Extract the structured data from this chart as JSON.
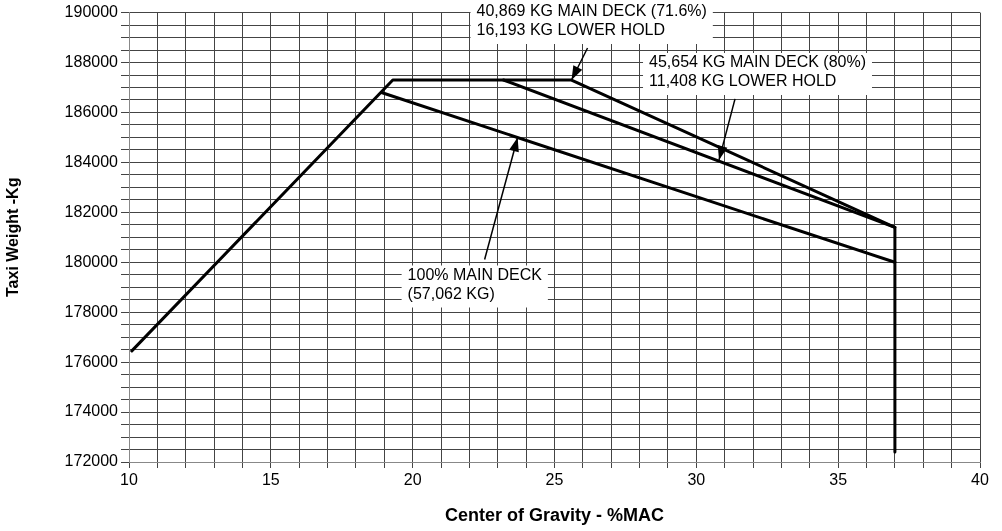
{
  "chart_data": {
    "type": "line",
    "xlabel": "Center of Gravity - %MAC",
    "ylabel": "Taxi Weight -Kg",
    "series": [
      {
        "color": "#000000",
        "x": [
          10.1,
          19.3,
          25.6,
          37,
          37
        ],
        "values": [
          176450,
          187300,
          187300,
          181400,
          172400
        ]
      },
      {
        "color": "#000000",
        "x": [
          23.2,
          37
        ],
        "values": [
          187300,
          181400
        ]
      },
      {
        "color": "#000000",
        "x": [
          18.9,
          37
        ],
        "values": [
          186800,
          180000
        ]
      }
    ],
    "annotations": [
      {
        "text": "40,869 KG MAIN DECK (71.6%)\n16,193 KG LOWER HOLD",
        "x": 25.6,
        "y": 187300
      },
      {
        "text": "45,654 KG MAIN DECK (80%)\n11,408 KG LOWER HOLD",
        "x": 30.8,
        "y": 184100
      },
      {
        "text": "100% MAIN DECK\n(57,062 KG)",
        "x": 23.7,
        "y": 185000
      }
    ],
    "xlim": [
      10,
      40
    ],
    "ylim": [
      172000,
      190000
    ],
    "xticks": [
      10,
      {
        "value": 11,
        "label": null
      },
      {
        "value": 12,
        "label": null
      },
      {
        "value": 13,
        "label": null
      },
      {
        "value": 14,
        "label": null
      },
      15,
      {
        "value": 16,
        "label": null
      },
      {
        "value": 17,
        "label": null
      },
      {
        "value": 18,
        "label": null
      },
      {
        "value": 19,
        "label": null
      },
      20,
      {
        "value": 21,
        "label": null
      },
      {
        "value": 22,
        "label": null
      },
      {
        "value": 23,
        "label": null
      },
      {
        "value": 24,
        "label": null
      },
      25,
      {
        "value": 26,
        "label": null
      },
      {
        "value": 27,
        "label": null
      },
      {
        "value": 28,
        "label": null
      },
      {
        "value": 29,
        "label": null
      },
      30,
      {
        "value": 31,
        "label": null
      },
      {
        "value": 32,
        "label": null
      },
      {
        "value": 33,
        "label": null
      },
      {
        "value": 34,
        "label": null
      },
      35,
      {
        "value": 36,
        "label": null
      },
      {
        "value": 37,
        "label": null
      },
      {
        "value": 38,
        "label": null
      },
      {
        "value": 39,
        "label": null
      },
      40
    ],
    "yticks": [
      172000,
      {
        "value": 172500,
        "label": null
      },
      {
        "value": 173000,
        "label": null
      },
      {
        "value": 173500,
        "label": null
      },
      174000,
      {
        "value": 174500,
        "label": null
      },
      {
        "value": 175000,
        "label": null
      },
      {
        "value": 175500,
        "label": null
      },
      176000,
      {
        "value": 176500,
        "label": null
      },
      {
        "value": 177000,
        "label": null
      },
      {
        "value": 177500,
        "label": null
      },
      178000,
      {
        "value": 178500,
        "label": null
      },
      {
        "value": 179000,
        "label": null
      },
      {
        "value": 179500,
        "label": null
      },
      180000,
      {
        "value": 180500,
        "label": null
      },
      {
        "value": 181000,
        "label": null
      },
      {
        "value": 181500,
        "label": null
      },
      182000,
      {
        "value": 182500,
        "label": null
      },
      {
        "value": 183000,
        "label": null
      },
      {
        "value": 183500,
        "label": null
      },
      184000,
      {
        "value": 184500,
        "label": null
      },
      {
        "value": 185000,
        "label": null
      },
      {
        "value": 185500,
        "label": null
      },
      186000,
      {
        "value": 186500,
        "label": null
      },
      {
        "value": 187000,
        "label": null
      },
      {
        "value": 187500,
        "label": null
      },
      188000,
      {
        "value": 188500,
        "label": null
      },
      {
        "value": 189000,
        "label": null
      },
      {
        "value": 189500,
        "label": null
      },
      190000
    ],
    "grid": true,
    "legend": false,
    "marker": "none",
    "line_style": "solid"
  }
}
